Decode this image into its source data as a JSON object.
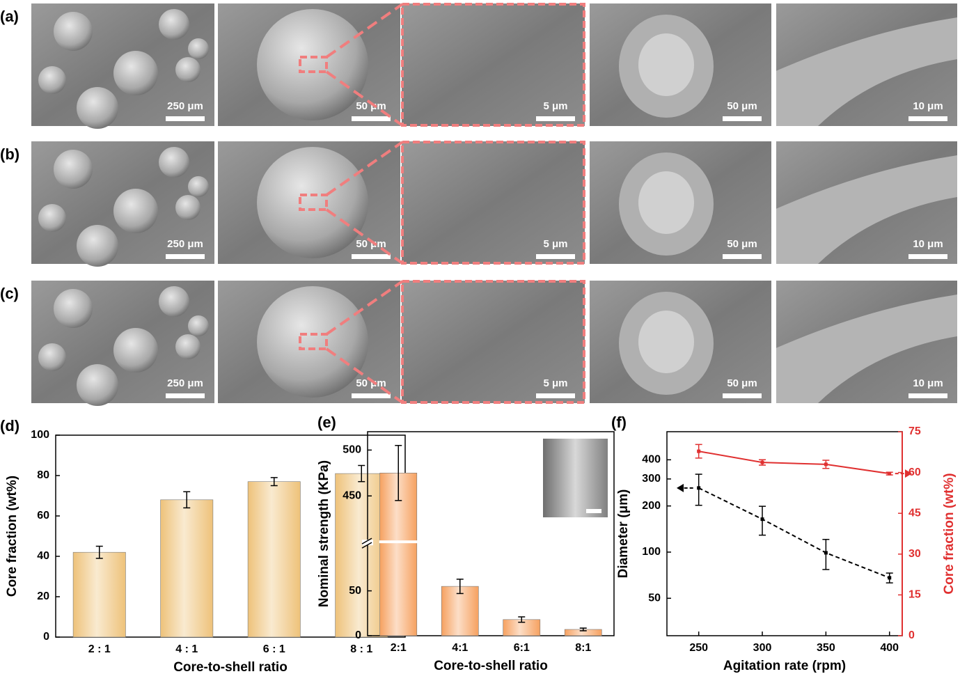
{
  "sem_images": {
    "rows": [
      {
        "label": "(a)",
        "scale_bars": [
          "250 μm",
          "50 μm",
          "5 μm",
          "50 μm",
          "10 μm"
        ]
      },
      {
        "label": "(b)",
        "scale_bars": [
          "250 μm",
          "50 μm",
          "5 μm",
          "50 μm",
          "10 μm"
        ]
      },
      {
        "label": "(c)",
        "scale_bars": [
          "250 μm",
          "50 μm",
          "5 μm",
          "50 μm",
          "10 μm"
        ]
      }
    ]
  },
  "chart_data": [
    {
      "type": "bar",
      "panel_label": "(d)",
      "x_label": "Core-to-shell ratio",
      "y_label": "Core fraction (wt%)",
      "categories": [
        "2 : 1",
        "4 : 1",
        "6 : 1",
        "8 : 1"
      ],
      "values": [
        42,
        68,
        77,
        81
      ],
      "errors": [
        3,
        4,
        2,
        4
      ],
      "color": "#eec27a",
      "ylim": [
        0,
        100
      ],
      "yticks": [
        0,
        20,
        40,
        60,
        80,
        100
      ]
    },
    {
      "type": "bar",
      "panel_label": "(e)",
      "x_label": "Core-to-shell ratio",
      "y_label": "Nominal strength (KPa)",
      "categories": [
        "2:1",
        "4:1",
        "6:1",
        "8:1"
      ],
      "values": [
        475,
        55,
        18,
        7
      ],
      "errors": [
        30,
        8,
        3,
        1.5
      ],
      "color": "#f6a160",
      "ylim": [
        0,
        520
      ],
      "broken_axis": {
        "lower": [
          0,
          100
        ],
        "upper": [
          400,
          520
        ]
      },
      "yticks": [
        0,
        50,
        450,
        500
      ]
    },
    {
      "type": "line",
      "panel_label": "(f)",
      "x_label": "Agitation rate (rpm)",
      "y_label": "Diameter (μm)",
      "y2_label": "Core fraction (wt%)",
      "x": [
        250,
        300,
        350,
        400
      ],
      "xlim": [
        225,
        410
      ],
      "xticks": [
        250,
        300,
        350,
        400
      ],
      "ylim": [
        28.5,
        610
      ],
      "yticks": [
        50,
        100,
        200,
        300,
        400
      ],
      "ylog": true,
      "y2lim": [
        0,
        75
      ],
      "y2ticks": [
        0,
        15,
        30,
        45,
        60,
        75
      ],
      "y2color": "#e03030",
      "series": [
        {
          "color": "#000000",
          "dashed": true,
          "values": [
            262,
            164,
            99,
            68
          ],
          "errors": [
            60,
            35,
            22,
            5
          ]
        },
        {
          "color": "#e03030",
          "axis": "y2",
          "values": [
            67.8,
            63.7,
            63,
            59.6
          ],
          "errors": [
            2.5,
            1,
            1.5,
            0.5
          ]
        }
      ]
    }
  ]
}
